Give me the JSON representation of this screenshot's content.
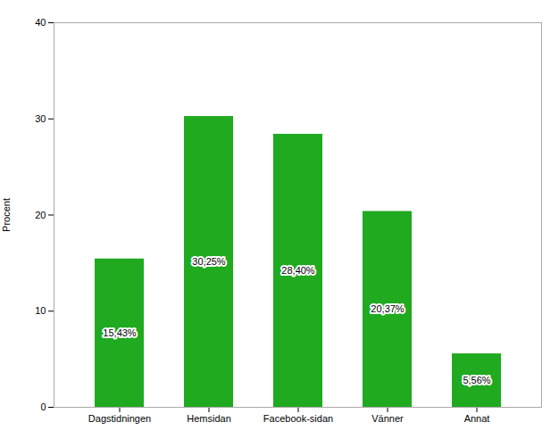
{
  "chart_data": {
    "type": "bar",
    "categories": [
      "Dagstidningen",
      "Hemsidan",
      "Facebook-sidan",
      "Vänner",
      "Annat"
    ],
    "values": [
      15.43,
      30.25,
      28.4,
      20.37,
      5.56
    ],
    "value_labels": [
      "15,43%",
      "30,25%",
      "28,40%",
      "20,37%",
      "5,56%"
    ],
    "data_labels": true,
    "color": "#1faa1f",
    "ylabel": "Procent",
    "ylim": [
      0,
      40
    ],
    "yticks": [
      0,
      10,
      20,
      30,
      40
    ],
    "grid": false
  }
}
